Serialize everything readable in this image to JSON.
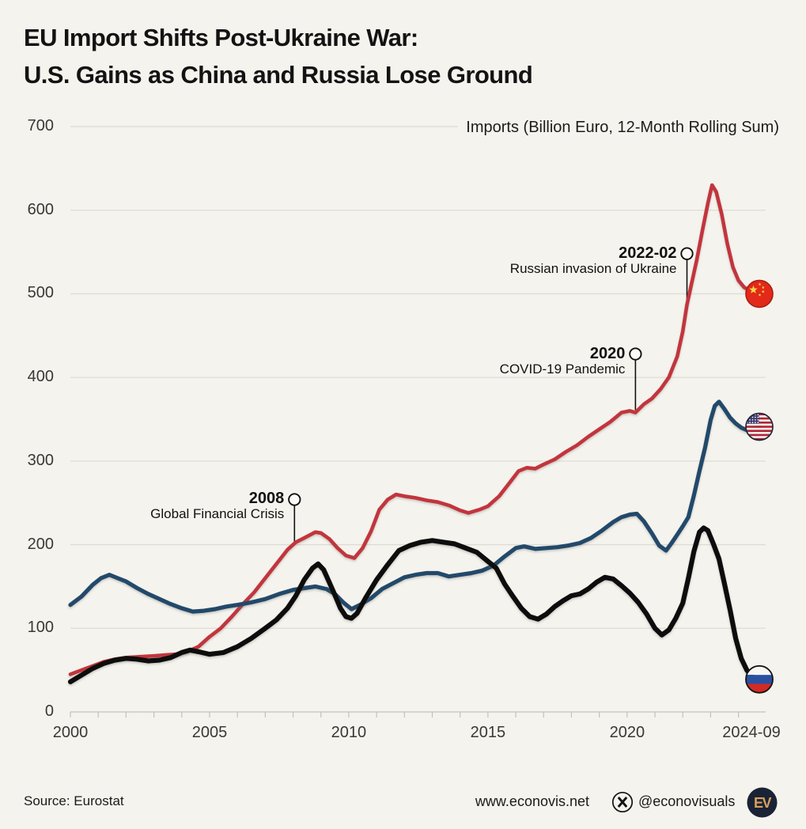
{
  "header": {
    "title_line1": "EU Import Shifts Post-Ukraine War:",
    "title_line2": "U.S. Gains as China and Russia Lose Ground"
  },
  "chart_data": {
    "type": "line",
    "units_label": "Imports (Billion Euro, 12-Month Rolling Sum)",
    "x_axis": {
      "range": [
        2000,
        2024.75
      ],
      "ticks": [
        {
          "value": 2000,
          "label": "2000"
        },
        {
          "value": 2005,
          "label": "2005"
        },
        {
          "value": 2010,
          "label": "2010"
        },
        {
          "value": 2015,
          "label": "2015"
        },
        {
          "value": 2020,
          "label": "2020"
        },
        {
          "value": 2024.75,
          "label": "2024-09"
        }
      ],
      "minor_tick_step_years": 1
    },
    "y_axis": {
      "range": [
        0,
        700
      ],
      "ticks": [
        0,
        100,
        200,
        300,
        400,
        500,
        600,
        700
      ]
    },
    "series": [
      {
        "name": "China",
        "id": "china",
        "flag": "cn",
        "color": "#c2343d",
        "width": 4.6,
        "points": [
          [
            2000.0,
            45
          ],
          [
            2000.4,
            50
          ],
          [
            2000.8,
            55
          ],
          [
            2001.2,
            60
          ],
          [
            2001.6,
            63
          ],
          [
            2002.0,
            65
          ],
          [
            2002.5,
            66
          ],
          [
            2003.0,
            67
          ],
          [
            2003.4,
            68
          ],
          [
            2003.8,
            69
          ],
          [
            2004.2,
            72
          ],
          [
            2004.6,
            78
          ],
          [
            2005.0,
            90
          ],
          [
            2005.4,
            100
          ],
          [
            2005.8,
            114
          ],
          [
            2006.2,
            129
          ],
          [
            2006.6,
            143
          ],
          [
            2007.0,
            160
          ],
          [
            2007.4,
            177
          ],
          [
            2007.8,
            194
          ],
          [
            2008.1,
            203
          ],
          [
            2008.4,
            208
          ],
          [
            2008.8,
            215
          ],
          [
            2009.0,
            214
          ],
          [
            2009.3,
            207
          ],
          [
            2009.6,
            196
          ],
          [
            2009.9,
            187
          ],
          [
            2010.2,
            184
          ],
          [
            2010.5,
            196
          ],
          [
            2010.8,
            216
          ],
          [
            2011.1,
            242
          ],
          [
            2011.4,
            254
          ],
          [
            2011.7,
            260
          ],
          [
            2012.0,
            258
          ],
          [
            2012.4,
            256
          ],
          [
            2012.8,
            253
          ],
          [
            2013.2,
            251
          ],
          [
            2013.6,
            247
          ],
          [
            2014.0,
            241
          ],
          [
            2014.3,
            238
          ],
          [
            2014.7,
            242
          ],
          [
            2015.0,
            246
          ],
          [
            2015.4,
            258
          ],
          [
            2015.8,
            275
          ],
          [
            2016.1,
            288
          ],
          [
            2016.4,
            292
          ],
          [
            2016.7,
            291
          ],
          [
            2017.0,
            296
          ],
          [
            2017.4,
            302
          ],
          [
            2017.8,
            311
          ],
          [
            2018.2,
            319
          ],
          [
            2018.6,
            329
          ],
          [
            2019.0,
            338
          ],
          [
            2019.4,
            347
          ],
          [
            2019.8,
            358
          ],
          [
            2020.1,
            360
          ],
          [
            2020.3,
            358
          ],
          [
            2020.6,
            368
          ],
          [
            2020.9,
            375
          ],
          [
            2021.2,
            386
          ],
          [
            2021.5,
            400
          ],
          [
            2021.8,
            425
          ],
          [
            2022.0,
            455
          ],
          [
            2022.15,
            487
          ],
          [
            2022.3,
            510
          ],
          [
            2022.5,
            540
          ],
          [
            2022.7,
            575
          ],
          [
            2022.9,
            608
          ],
          [
            2023.05,
            630
          ],
          [
            2023.2,
            622
          ],
          [
            2023.4,
            595
          ],
          [
            2023.6,
            560
          ],
          [
            2023.8,
            532
          ],
          [
            2024.0,
            516
          ],
          [
            2024.2,
            508
          ],
          [
            2024.45,
            503
          ],
          [
            2024.75,
            500
          ]
        ]
      },
      {
        "name": "United States",
        "id": "united-states",
        "flag": "us",
        "color": "#20486b",
        "width": 5.2,
        "points": [
          [
            2000.0,
            128
          ],
          [
            2000.4,
            138
          ],
          [
            2000.8,
            152
          ],
          [
            2001.1,
            160
          ],
          [
            2001.4,
            164
          ],
          [
            2001.7,
            160
          ],
          [
            2002.0,
            156
          ],
          [
            2002.4,
            148
          ],
          [
            2002.8,
            141
          ],
          [
            2003.2,
            135
          ],
          [
            2003.6,
            129
          ],
          [
            2004.0,
            124
          ],
          [
            2004.4,
            120
          ],
          [
            2004.8,
            121
          ],
          [
            2005.2,
            123
          ],
          [
            2005.6,
            126
          ],
          [
            2006.0,
            128
          ],
          [
            2006.5,
            131
          ],
          [
            2007.0,
            135
          ],
          [
            2007.5,
            141
          ],
          [
            2008.0,
            146
          ],
          [
            2008.4,
            148
          ],
          [
            2008.8,
            150
          ],
          [
            2009.2,
            147
          ],
          [
            2009.5,
            141
          ],
          [
            2009.8,
            131
          ],
          [
            2010.1,
            123
          ],
          [
            2010.4,
            128
          ],
          [
            2010.8,
            136
          ],
          [
            2011.2,
            147
          ],
          [
            2011.6,
            154
          ],
          [
            2012.0,
            161
          ],
          [
            2012.4,
            164
          ],
          [
            2012.8,
            166
          ],
          [
            2013.2,
            166
          ],
          [
            2013.6,
            162
          ],
          [
            2014.0,
            164
          ],
          [
            2014.4,
            166
          ],
          [
            2014.8,
            169
          ],
          [
            2015.2,
            175
          ],
          [
            2015.6,
            186
          ],
          [
            2016.0,
            196
          ],
          [
            2016.3,
            198
          ],
          [
            2016.7,
            195
          ],
          [
            2017.1,
            196
          ],
          [
            2017.5,
            197
          ],
          [
            2017.9,
            199
          ],
          [
            2018.3,
            202
          ],
          [
            2018.7,
            208
          ],
          [
            2019.1,
            217
          ],
          [
            2019.5,
            227
          ],
          [
            2019.8,
            233
          ],
          [
            2020.1,
            236
          ],
          [
            2020.35,
            237
          ],
          [
            2020.6,
            228
          ],
          [
            2020.9,
            213
          ],
          [
            2021.15,
            199
          ],
          [
            2021.4,
            193
          ],
          [
            2021.6,
            202
          ],
          [
            2021.8,
            212
          ],
          [
            2022.0,
            222
          ],
          [
            2022.2,
            233
          ],
          [
            2022.4,
            259
          ],
          [
            2022.6,
            288
          ],
          [
            2022.8,
            316
          ],
          [
            2023.0,
            349
          ],
          [
            2023.15,
            366
          ],
          [
            2023.3,
            371
          ],
          [
            2023.5,
            362
          ],
          [
            2023.7,
            352
          ],
          [
            2023.9,
            345
          ],
          [
            2024.1,
            340
          ],
          [
            2024.3,
            337
          ],
          [
            2024.5,
            336
          ],
          [
            2024.75,
            341
          ]
        ]
      },
      {
        "name": "Russia",
        "id": "russia",
        "flag": "ru",
        "color": "#0b0b0b",
        "width": 6.2,
        "points": [
          [
            2000.0,
            36
          ],
          [
            2000.4,
            44
          ],
          [
            2000.8,
            52
          ],
          [
            2001.2,
            58
          ],
          [
            2001.6,
            62
          ],
          [
            2002.0,
            64
          ],
          [
            2002.4,
            63
          ],
          [
            2002.8,
            61
          ],
          [
            2003.2,
            62
          ],
          [
            2003.6,
            65
          ],
          [
            2004.0,
            71
          ],
          [
            2004.3,
            74
          ],
          [
            2004.6,
            72
          ],
          [
            2005.0,
            69
          ],
          [
            2005.5,
            71
          ],
          [
            2006.0,
            78
          ],
          [
            2006.5,
            88
          ],
          [
            2007.0,
            100
          ],
          [
            2007.4,
            110
          ],
          [
            2007.8,
            124
          ],
          [
            2008.1,
            139
          ],
          [
            2008.4,
            158
          ],
          [
            2008.7,
            172
          ],
          [
            2008.9,
            177
          ],
          [
            2009.1,
            170
          ],
          [
            2009.3,
            155
          ],
          [
            2009.5,
            140
          ],
          [
            2009.7,
            124
          ],
          [
            2009.9,
            114
          ],
          [
            2010.1,
            112
          ],
          [
            2010.3,
            118
          ],
          [
            2010.6,
            136
          ],
          [
            2011.0,
            158
          ],
          [
            2011.4,
            176
          ],
          [
            2011.8,
            193
          ],
          [
            2012.2,
            199
          ],
          [
            2012.6,
            203
          ],
          [
            2013.0,
            205
          ],
          [
            2013.4,
            203
          ],
          [
            2013.8,
            201
          ],
          [
            2014.2,
            196
          ],
          [
            2014.6,
            191
          ],
          [
            2015.0,
            180
          ],
          [
            2015.3,
            172
          ],
          [
            2015.6,
            153
          ],
          [
            2015.9,
            138
          ],
          [
            2016.2,
            124
          ],
          [
            2016.5,
            114
          ],
          [
            2016.8,
            111
          ],
          [
            2017.1,
            117
          ],
          [
            2017.4,
            126
          ],
          [
            2017.7,
            133
          ],
          [
            2018.0,
            139
          ],
          [
            2018.3,
            141
          ],
          [
            2018.6,
            147
          ],
          [
            2018.9,
            155
          ],
          [
            2019.2,
            161
          ],
          [
            2019.5,
            159
          ],
          [
            2019.8,
            151
          ],
          [
            2020.1,
            142
          ],
          [
            2020.4,
            131
          ],
          [
            2020.7,
            117
          ],
          [
            2021.0,
            100
          ],
          [
            2021.25,
            92
          ],
          [
            2021.5,
            98
          ],
          [
            2021.75,
            112
          ],
          [
            2022.0,
            130
          ],
          [
            2022.2,
            160
          ],
          [
            2022.4,
            192
          ],
          [
            2022.6,
            215
          ],
          [
            2022.75,
            220
          ],
          [
            2022.9,
            217
          ],
          [
            2023.1,
            201
          ],
          [
            2023.3,
            183
          ],
          [
            2023.5,
            153
          ],
          [
            2023.7,
            122
          ],
          [
            2023.9,
            88
          ],
          [
            2024.1,
            64
          ],
          [
            2024.3,
            50
          ],
          [
            2024.5,
            42
          ],
          [
            2024.75,
            39
          ]
        ]
      }
    ],
    "annotations": [
      {
        "title": "2008",
        "subtitle": "Global Financial Crisis",
        "year": 2008.05,
        "circle_value": 254,
        "line_end_value": 203
      },
      {
        "title": "2020",
        "subtitle": "COVID-19 Pandemic",
        "year": 2020.3,
        "circle_value": 428,
        "line_end_value": 361
      },
      {
        "title": "2022-02",
        "subtitle": "Russian invasion of Ukraine",
        "year": 2022.15,
        "circle_value": 548,
        "line_end_value": 487
      }
    ],
    "grid_on": true,
    "colors": {
      "background": "#f5f3ee",
      "gridline": "#dedcd4",
      "axis": "#c3c1b9",
      "annotation": "#111111"
    }
  },
  "footer": {
    "source": "Source: Eurostat",
    "website": "www.econovis.net",
    "social_handle": "@econovisuals",
    "logo_text": "EV"
  }
}
